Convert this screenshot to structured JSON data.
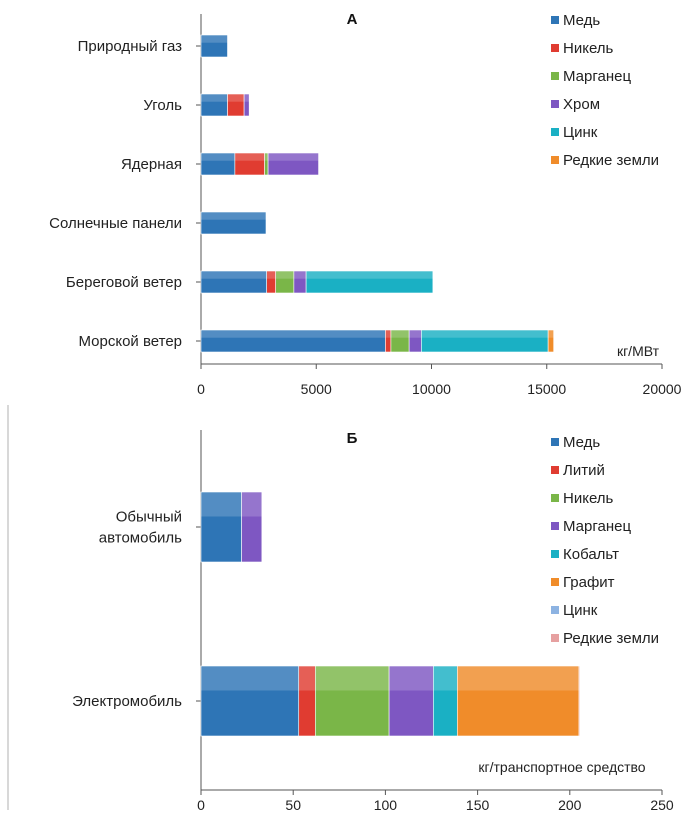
{
  "chart_data": [
    {
      "type": "bar",
      "orientation": "horizontal",
      "stacked": true,
      "title": "А",
      "unit_label": "кг/МВт",
      "categories": [
        "Природный газ",
        "Уголь",
        "Ядерная",
        "Солнечные панели",
        "Береговой ветер",
        "Морской ветер"
      ],
      "xlim": [
        0,
        20000
      ],
      "xticks": [
        0,
        5000,
        10000,
        15000,
        20000
      ],
      "legend_position": "top-right",
      "grid": false,
      "series": [
        {
          "name": "Медь",
          "color": "#2e75b6",
          "values": [
            1150,
            1150,
            1470,
            2820,
            2850,
            8000
          ]
        },
        {
          "name": "Никель",
          "color": "#e03c31",
          "values": [
            0,
            720,
            1290,
            0,
            390,
            240
          ]
        },
        {
          "name": "Марганец",
          "color": "#7ab648",
          "values": [
            0,
            0,
            150,
            0,
            790,
            790
          ]
        },
        {
          "name": "Хром",
          "color": "#7e57c2",
          "values": [
            0,
            220,
            2190,
            0,
            530,
            530
          ]
        },
        {
          "name": "Цинк",
          "color": "#1ab0c4",
          "values": [
            0,
            0,
            0,
            0,
            5500,
            5500
          ]
        },
        {
          "name": "Редкие земли",
          "color": "#f08c2a",
          "values": [
            0,
            0,
            0,
            0,
            0,
            240
          ]
        }
      ]
    },
    {
      "type": "bar",
      "orientation": "horizontal",
      "stacked": true,
      "title": "Б",
      "unit_label": "кг/транспортное средство",
      "categories": [
        "Обычный\nавтомобиль",
        "Электромобиль"
      ],
      "xlim": [
        0,
        250
      ],
      "xticks": [
        0,
        50,
        100,
        150,
        200,
        250
      ],
      "legend_position": "top-right",
      "grid": false,
      "series": [
        {
          "name": "Медь",
          "color": "#2e75b6",
          "values": [
            22,
            53
          ]
        },
        {
          "name": "Литий",
          "color": "#e03c31",
          "values": [
            0,
            9
          ]
        },
        {
          "name": "Никель",
          "color": "#7ab648",
          "values": [
            0,
            40
          ]
        },
        {
          "name": "Марганец",
          "color": "#7e57c2",
          "values": [
            11,
            24
          ]
        },
        {
          "name": "Кобальт",
          "color": "#1ab0c4",
          "values": [
            0,
            13
          ]
        },
        {
          "name": "Графит",
          "color": "#f08c2a",
          "values": [
            0,
            66
          ]
        },
        {
          "name": "Цинк",
          "color": "#8db3e2",
          "values": [
            0,
            0
          ]
        },
        {
          "name": "Редкие земли",
          "color": "#e6a0a0",
          "values": [
            0,
            0.5
          ]
        }
      ]
    }
  ]
}
